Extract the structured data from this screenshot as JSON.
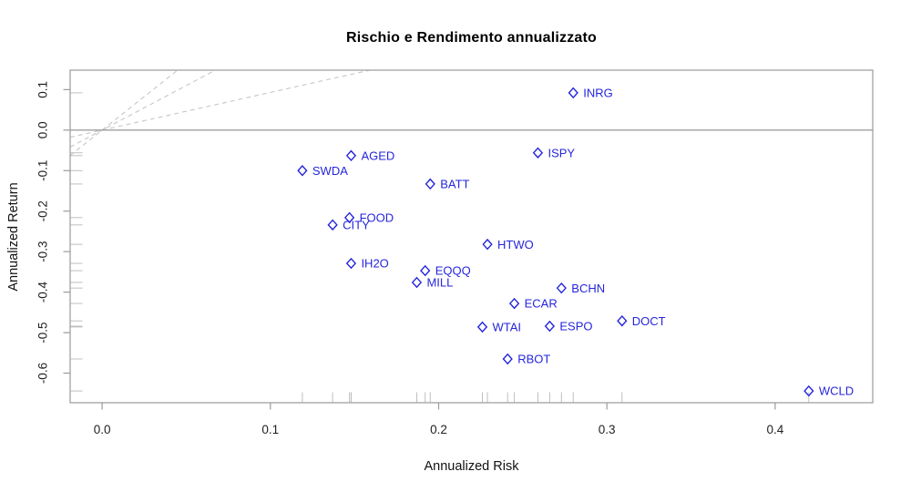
{
  "chart_data": {
    "type": "scatter",
    "title": "Rischio e Rendimento annualizzato",
    "xlabel": "Annualized Risk",
    "ylabel": "Annualized Return",
    "xlim": [
      -0.019,
      0.458
    ],
    "ylim": [
      -0.673,
      0.148
    ],
    "x_ticks": [
      0.0,
      0.1,
      0.2,
      0.3,
      0.4
    ],
    "y_ticks": [
      0.1,
      0.0,
      -0.1,
      -0.2,
      -0.3,
      -0.4,
      -0.5,
      -0.6
    ],
    "grid": false,
    "legend": false,
    "marker": "open-diamond",
    "rug_axes": [
      "bottom",
      "left"
    ],
    "points": [
      {
        "label": "INRG",
        "risk": 0.28,
        "return": 0.092
      },
      {
        "label": "ISPY",
        "risk": 0.259,
        "return": -0.056
      },
      {
        "label": "AGED",
        "risk": 0.148,
        "return": -0.063
      },
      {
        "label": "SWDA",
        "risk": 0.119,
        "return": -0.1
      },
      {
        "label": "BATT",
        "risk": 0.195,
        "return": -0.133
      },
      {
        "label": "FOOD",
        "risk": 0.147,
        "return": -0.216
      },
      {
        "label": "CITY",
        "risk": 0.137,
        "return": -0.234
      },
      {
        "label": "HTWO",
        "risk": 0.229,
        "return": -0.282
      },
      {
        "label": "IH2O",
        "risk": 0.148,
        "return": -0.329
      },
      {
        "label": "EQQQ",
        "risk": 0.192,
        "return": -0.347
      },
      {
        "label": "MILL",
        "risk": 0.187,
        "return": -0.376
      },
      {
        "label": "BCHN",
        "risk": 0.273,
        "return": -0.39
      },
      {
        "label": "ECAR",
        "risk": 0.245,
        "return": -0.428
      },
      {
        "label": "DOCT",
        "risk": 0.309,
        "return": -0.471
      },
      {
        "label": "ESPO",
        "risk": 0.266,
        "return": -0.484
      },
      {
        "label": "WTAI",
        "risk": 0.226,
        "return": -0.486
      },
      {
        "label": "RBOT",
        "risk": 0.241,
        "return": -0.565
      },
      {
        "label": "WCLD",
        "risk": 0.42,
        "return": -0.644
      }
    ],
    "reference_lines": {
      "horizontal_zero_return": 0.0,
      "dashed_origin_slopes": [
        3.3,
        2.2,
        0.93
      ]
    },
    "colors": {
      "point": "#2525DC",
      "box": "#9a9a9a",
      "zero_line": "#8c8c8c",
      "dashed_line": "#c6c6c6",
      "rug": "#bfbfbf",
      "tick_label": "#1f1f1f",
      "title": "#000000"
    }
  }
}
